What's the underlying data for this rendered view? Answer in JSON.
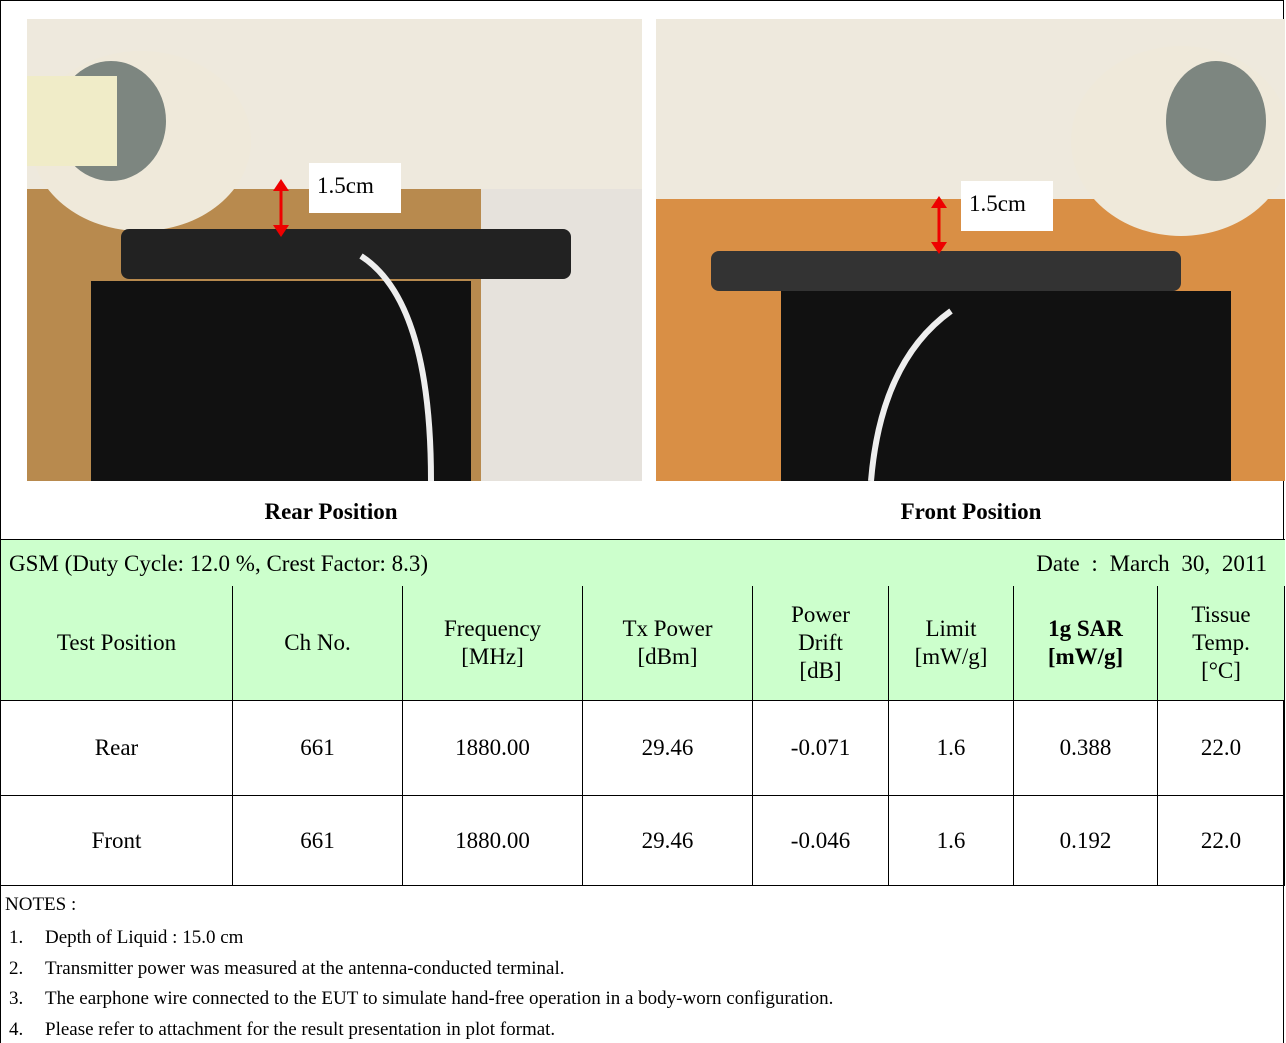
{
  "photos": [
    {
      "annotation": "1.5cm",
      "caption": "Rear Position"
    },
    {
      "annotation": "1.5cm",
      "caption": "Front Position"
    }
  ],
  "table": {
    "condition": "GSM (Duty Cycle: 12.0 %, Crest Factor: 8.3)",
    "date": "Date : March 30, 2011",
    "header": [
      [
        "Test Position"
      ],
      [
        "Ch No."
      ],
      [
        "Frequency",
        "[MHz]"
      ],
      [
        "Tx Power",
        "[dBm]"
      ],
      [
        "Power",
        "Drift",
        "[dB]"
      ],
      [
        "Limit",
        "[mW/g]"
      ],
      [
        "1g SAR",
        "[mW/g]"
      ],
      [
        "Tissue",
        "Temp.",
        "[°C]"
      ]
    ],
    "rows": [
      [
        "Rear",
        "661",
        "1880.00",
        "29.46",
        "-0.071",
        "1.6",
        "0.388",
        "22.0"
      ],
      [
        "Front",
        "661",
        "1880.00",
        "29.46",
        "-0.046",
        "1.6",
        "0.192",
        "22.0"
      ]
    ]
  },
  "notes": {
    "title": "NOTES :",
    "items": [
      {
        "number": "1.",
        "text": "Depth of Liquid : 15.0 cm"
      },
      {
        "number": "2.",
        "text": "Transmitter power was measured at the antenna-conducted terminal."
      },
      {
        "number": "3.",
        "text": "The earphone wire connected to the EUT to simulate hand-free operation in a body-worn configuration."
      },
      {
        "number": "4.",
        "text": "Please refer to attachment for the result presentation in plot format."
      }
    ]
  }
}
